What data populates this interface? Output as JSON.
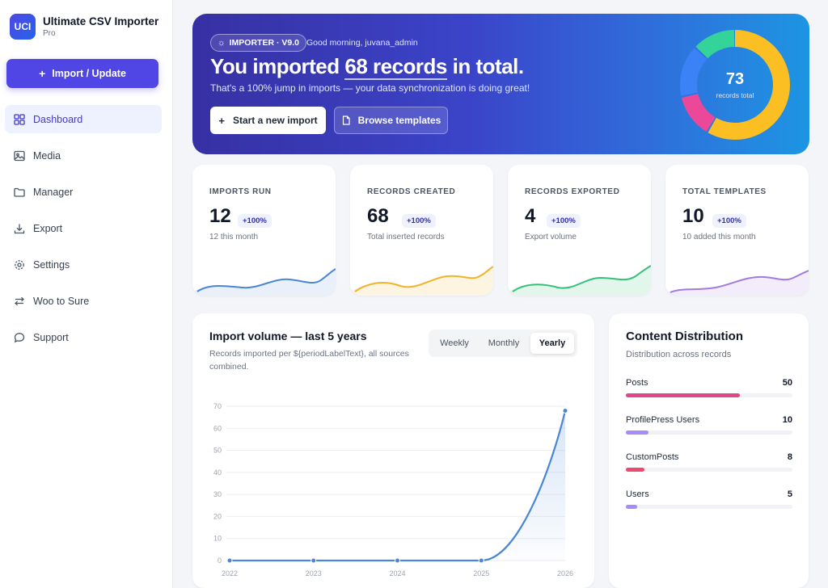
{
  "app": {
    "logo_text": "UCI",
    "name": "Ultimate CSV Importer",
    "edition": "Pro"
  },
  "sidebar": {
    "import_button": "Import / Update",
    "items": [
      {
        "label": "Dashboard",
        "icon": "grid-icon",
        "active": true
      },
      {
        "label": "Media",
        "icon": "image-icon"
      },
      {
        "label": "Manager",
        "icon": "folder-icon"
      },
      {
        "label": "Export",
        "icon": "download-icon"
      },
      {
        "label": "Settings",
        "icon": "gear-icon"
      },
      {
        "label": "Woo to Sure",
        "icon": "sync-icon"
      },
      {
        "label": "Support",
        "icon": "chat-icon"
      }
    ]
  },
  "hero": {
    "badge": "IMPORTER · V9.0",
    "greeting": "Good morning, juvana_admin",
    "title_pre": "You imported ",
    "title_highlight": "68 records",
    "title_post": " in total.",
    "subtitle": "That's a 100% jump in imports — your data synchronization is doing great!",
    "primary_button": "Start a new import",
    "secondary_button": "Browse templates",
    "donut_value": "73",
    "donut_label": "records total",
    "donut_colors": [
      "#fbbf24",
      "#ec4899",
      "#3b82f6",
      "#34d399"
    ]
  },
  "stats": [
    {
      "label": "IMPORTS RUN",
      "value": "12",
      "badge": "+100%",
      "sub": "12 this month",
      "color": "#4a86d6"
    },
    {
      "label": "RECORDS CREATED",
      "value": "68",
      "badge": "+100%",
      "sub": "Total inserted records",
      "color": "#f0b429"
    },
    {
      "label": "RECORDS EXPORTED",
      "value": "4",
      "badge": "+100%",
      "sub": "Export volume",
      "color": "#34c07a"
    },
    {
      "label": "TOTAL TEMPLATES",
      "value": "10",
      "badge": "+100%",
      "sub": "10 added this month",
      "color": "#a37be0"
    }
  ],
  "chart_panel": {
    "title": "Import volume — last 5 years",
    "subtitle": "Records imported per ${periodLabelText}, all sources combined.",
    "periods": [
      "Weekly",
      "Monthly",
      "Yearly"
    ],
    "active_period": "Yearly"
  },
  "chart_data": {
    "type": "area",
    "x": [
      "2022",
      "2023",
      "2024",
      "2025",
      "2026"
    ],
    "values": [
      0,
      0,
      0,
      0,
      68
    ],
    "yticks": [
      0,
      10,
      20,
      30,
      40,
      50,
      60,
      70
    ],
    "ylim": [
      0,
      70
    ],
    "grid": true,
    "color": "#4a86d6"
  },
  "distribution": {
    "title": "Content Distribution",
    "subtitle": "Distribution across records",
    "max": 73,
    "items": [
      {
        "name": "Posts",
        "count": 50,
        "color": "#e0468a"
      },
      {
        "name": "ProfilePress Users",
        "count": 10,
        "color": "#a78bfa"
      },
      {
        "name": "CustomPosts",
        "count": 8,
        "color": "#ec4872"
      },
      {
        "name": "Users",
        "count": 5,
        "color": "#a78bfa"
      }
    ]
  }
}
